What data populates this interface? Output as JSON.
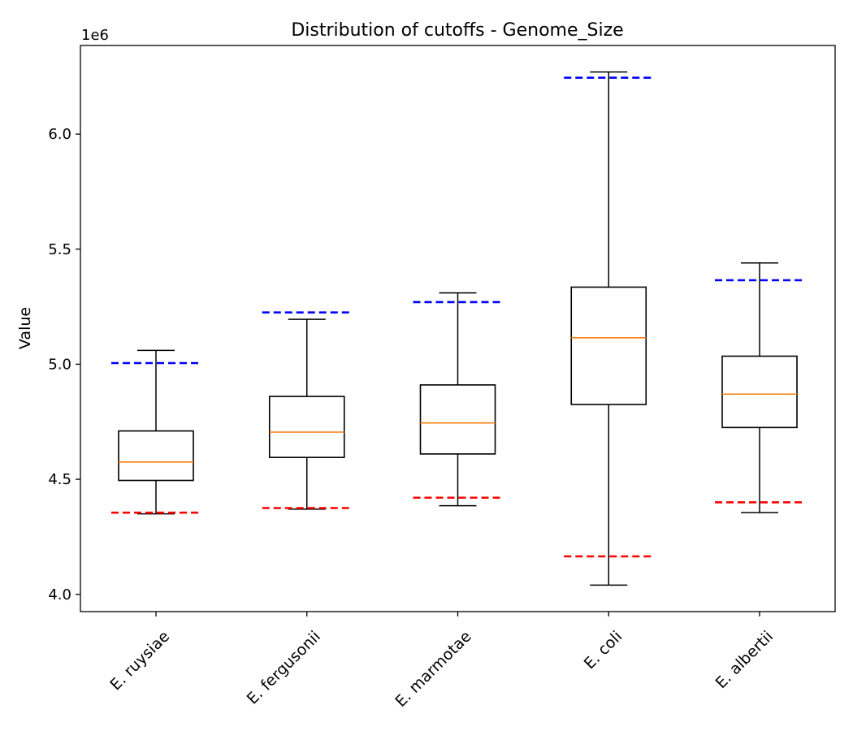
{
  "chart_data": {
    "type": "box",
    "title": "Distribution of cutoffs - Genome_Size",
    "xlabel": "",
    "ylabel": "Value",
    "offset_label": "1e6",
    "ylim": [
      3.925,
      6.385
    ],
    "yticks": [
      4.0,
      4.5,
      5.0,
      5.5,
      6.0
    ],
    "ytick_labels": [
      "4.0",
      "4.5",
      "5.0",
      "5.5",
      "6.0"
    ],
    "categories": [
      "E. ruysiae",
      "E. fergusonii",
      "E. marmotae",
      "E. coli",
      "E. albertii"
    ],
    "boxes": [
      {
        "whisker_low": 4.35,
        "q1": 4.495,
        "median": 4.575,
        "q3": 4.71,
        "whisker_high": 5.06
      },
      {
        "whisker_low": 4.37,
        "q1": 4.595,
        "median": 4.705,
        "q3": 4.86,
        "whisker_high": 5.195
      },
      {
        "whisker_low": 4.385,
        "q1": 4.61,
        "median": 4.745,
        "q3": 4.91,
        "whisker_high": 5.31
      },
      {
        "whisker_low": 4.04,
        "q1": 4.825,
        "median": 5.115,
        "q3": 5.335,
        "whisker_high": 6.27
      },
      {
        "whisker_low": 4.355,
        "q1": 4.725,
        "median": 4.87,
        "q3": 5.035,
        "whisker_high": 5.44
      }
    ],
    "cutoffs": {
      "upper": [
        5.005,
        5.225,
        5.27,
        6.245,
        5.365
      ],
      "lower": [
        4.355,
        4.375,
        4.42,
        4.165,
        4.4
      ]
    },
    "colors": {
      "box": "#000000",
      "median": "#ff7f0e",
      "upper_cutoff": "#0000ff",
      "lower_cutoff": "#ff0000"
    },
    "grid": false,
    "legend": "none"
  }
}
